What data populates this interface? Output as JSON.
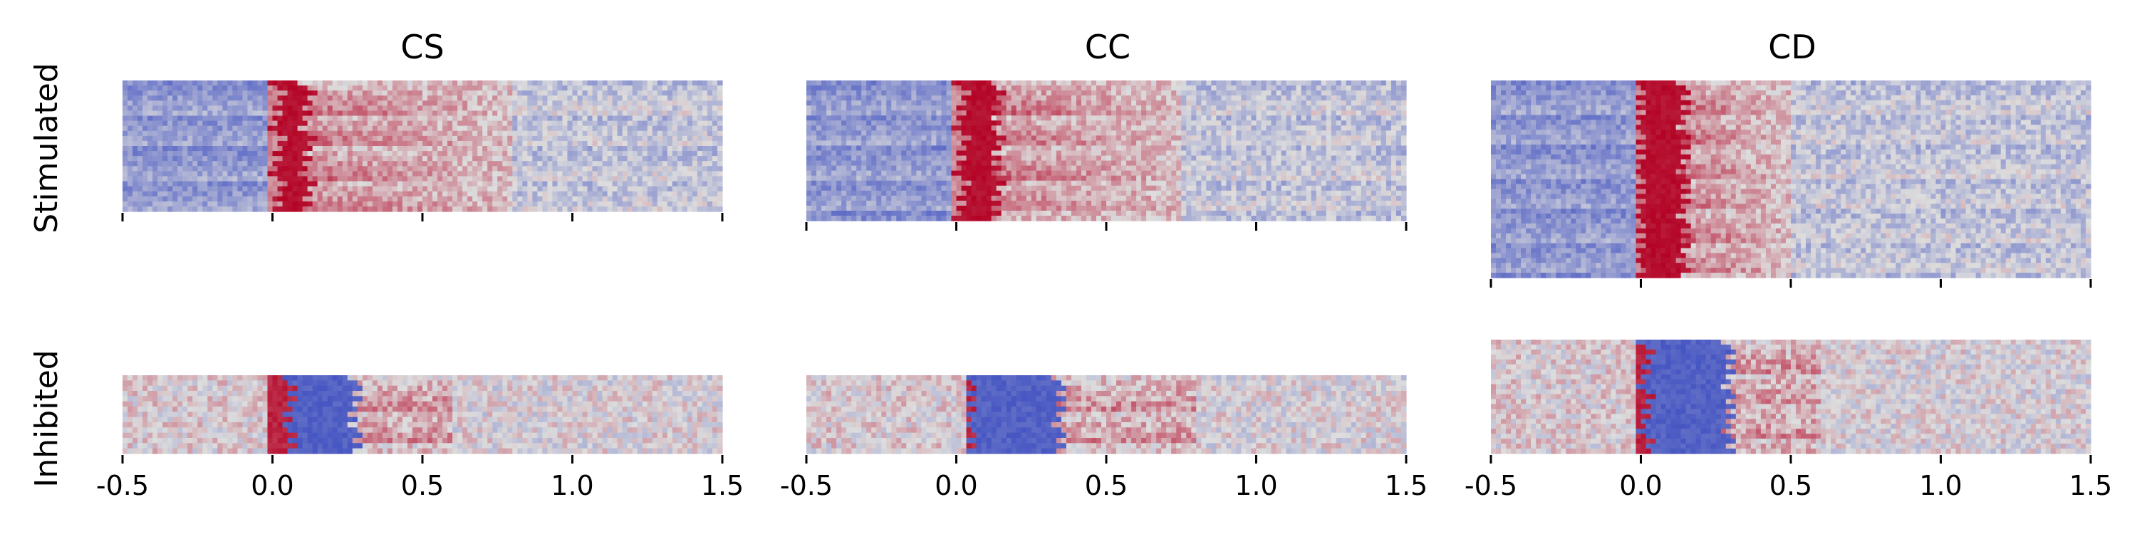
{
  "chart_data": {
    "type": "heatmap",
    "colormap": "coolwarm",
    "colors": {
      "low": "#3b4cc0",
      "mid": "#dddddd",
      "high": "#b40426"
    },
    "columns": [
      "CS",
      "CC",
      "CD"
    ],
    "rows": [
      "Stimulated",
      "Inhibited"
    ],
    "x_ticks": [
      -0.5,
      0.0,
      0.5,
      1.0,
      1.5
    ],
    "x_tick_labels": [
      "-0.5",
      "0.0",
      "0.5",
      "1.0",
      "1.5"
    ],
    "xlim": [
      -0.5,
      1.5
    ],
    "grid": false,
    "panels": [
      {
        "column": "CS",
        "row": "Stimulated",
        "n_rows": 26,
        "onset": 0.0,
        "response": "excitation",
        "peak_time": [
          0.02,
          0.12
        ],
        "late_activity_until": 0.8
      },
      {
        "column": "CC",
        "row": "Stimulated",
        "n_rows": 28,
        "onset": 0.0,
        "response": "excitation",
        "peak_time": [
          0.02,
          0.14
        ],
        "late_activity_until": 0.75
      },
      {
        "column": "CD",
        "row": "Stimulated",
        "n_rows": 40,
        "onset": 0.0,
        "response": "excitation",
        "peak_time": [
          0.0,
          0.15
        ],
        "late_activity_until": 0.5
      },
      {
        "column": "CS",
        "row": "Inhibited",
        "n_rows": 15,
        "onset": 0.0,
        "response": "inhibition",
        "trough_time": [
          0.06,
          0.28
        ],
        "late_activity_until": 0.6
      },
      {
        "column": "CC",
        "row": "Inhibited",
        "n_rows": 15,
        "onset": 0.05,
        "response": "inhibition",
        "trough_time": [
          0.05,
          0.35
        ],
        "late_activity_until": 0.8
      },
      {
        "column": "CD",
        "row": "Inhibited",
        "n_rows": 23,
        "onset": 0.0,
        "response": "inhibition",
        "trough_time": [
          0.02,
          0.3
        ],
        "late_activity_until": 0.6
      }
    ]
  }
}
